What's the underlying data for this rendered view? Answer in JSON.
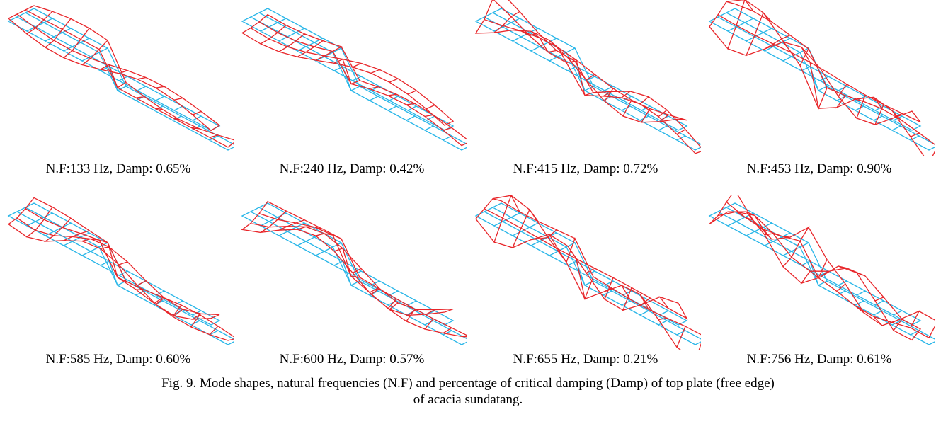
{
  "figure": {
    "panels": [
      {
        "caption": "N.F:133 Hz, Damp: 0.65%"
      },
      {
        "caption": "N.F:240 Hz, Damp: 0.42%"
      },
      {
        "caption": "N.F:415 Hz, Damp: 0.72%"
      },
      {
        "caption": "N.F:453 Hz, Damp: 0.90%"
      },
      {
        "caption": "N.F:585 Hz, Damp: 0.60%"
      },
      {
        "caption": "N.F:600 Hz, Damp: 0.57%"
      },
      {
        "caption": "N.F:655 Hz, Damp: 0.21%"
      },
      {
        "caption": "N.F:756 Hz, Damp: 0.61%"
      }
    ],
    "caption_lines": [
      "Fig. 9. Mode shapes, natural frequencies (N.F) and percentage of critical damping (Damp) of top plate (free edge)",
      "of acacia sundatang."
    ]
  }
}
